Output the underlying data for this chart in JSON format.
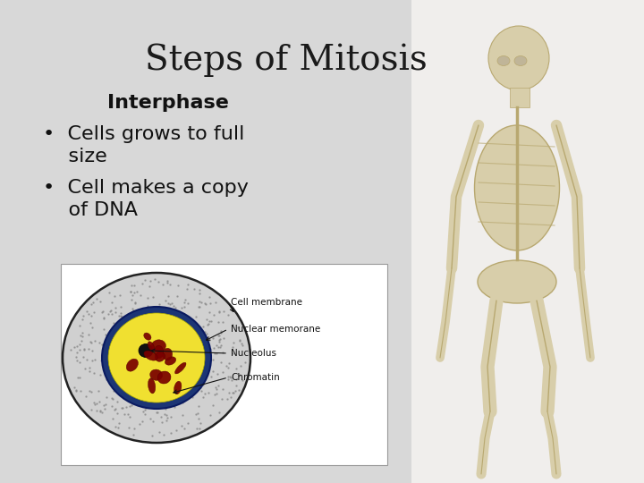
{
  "title": "Steps of Mitosis",
  "title_fontsize": 28,
  "title_color": "#1a1a1a",
  "subtitle": "Interphase",
  "subtitle_fontsize": 16,
  "bullet1_line1": "•  Cells grows to full",
  "bullet1_line2": "    size",
  "bullet2_line1": "•  Cell makes a copy",
  "bullet2_line2": "    of DNA",
  "bullet_fontsize": 16,
  "bg_color": "#d8d8d8",
  "bg_right": "#f0eeec",
  "text_color": "#111111",
  "diagram_labels": [
    "Cell membrane",
    "Nuclear memorane",
    "Nucleolus",
    "Chromatin"
  ]
}
